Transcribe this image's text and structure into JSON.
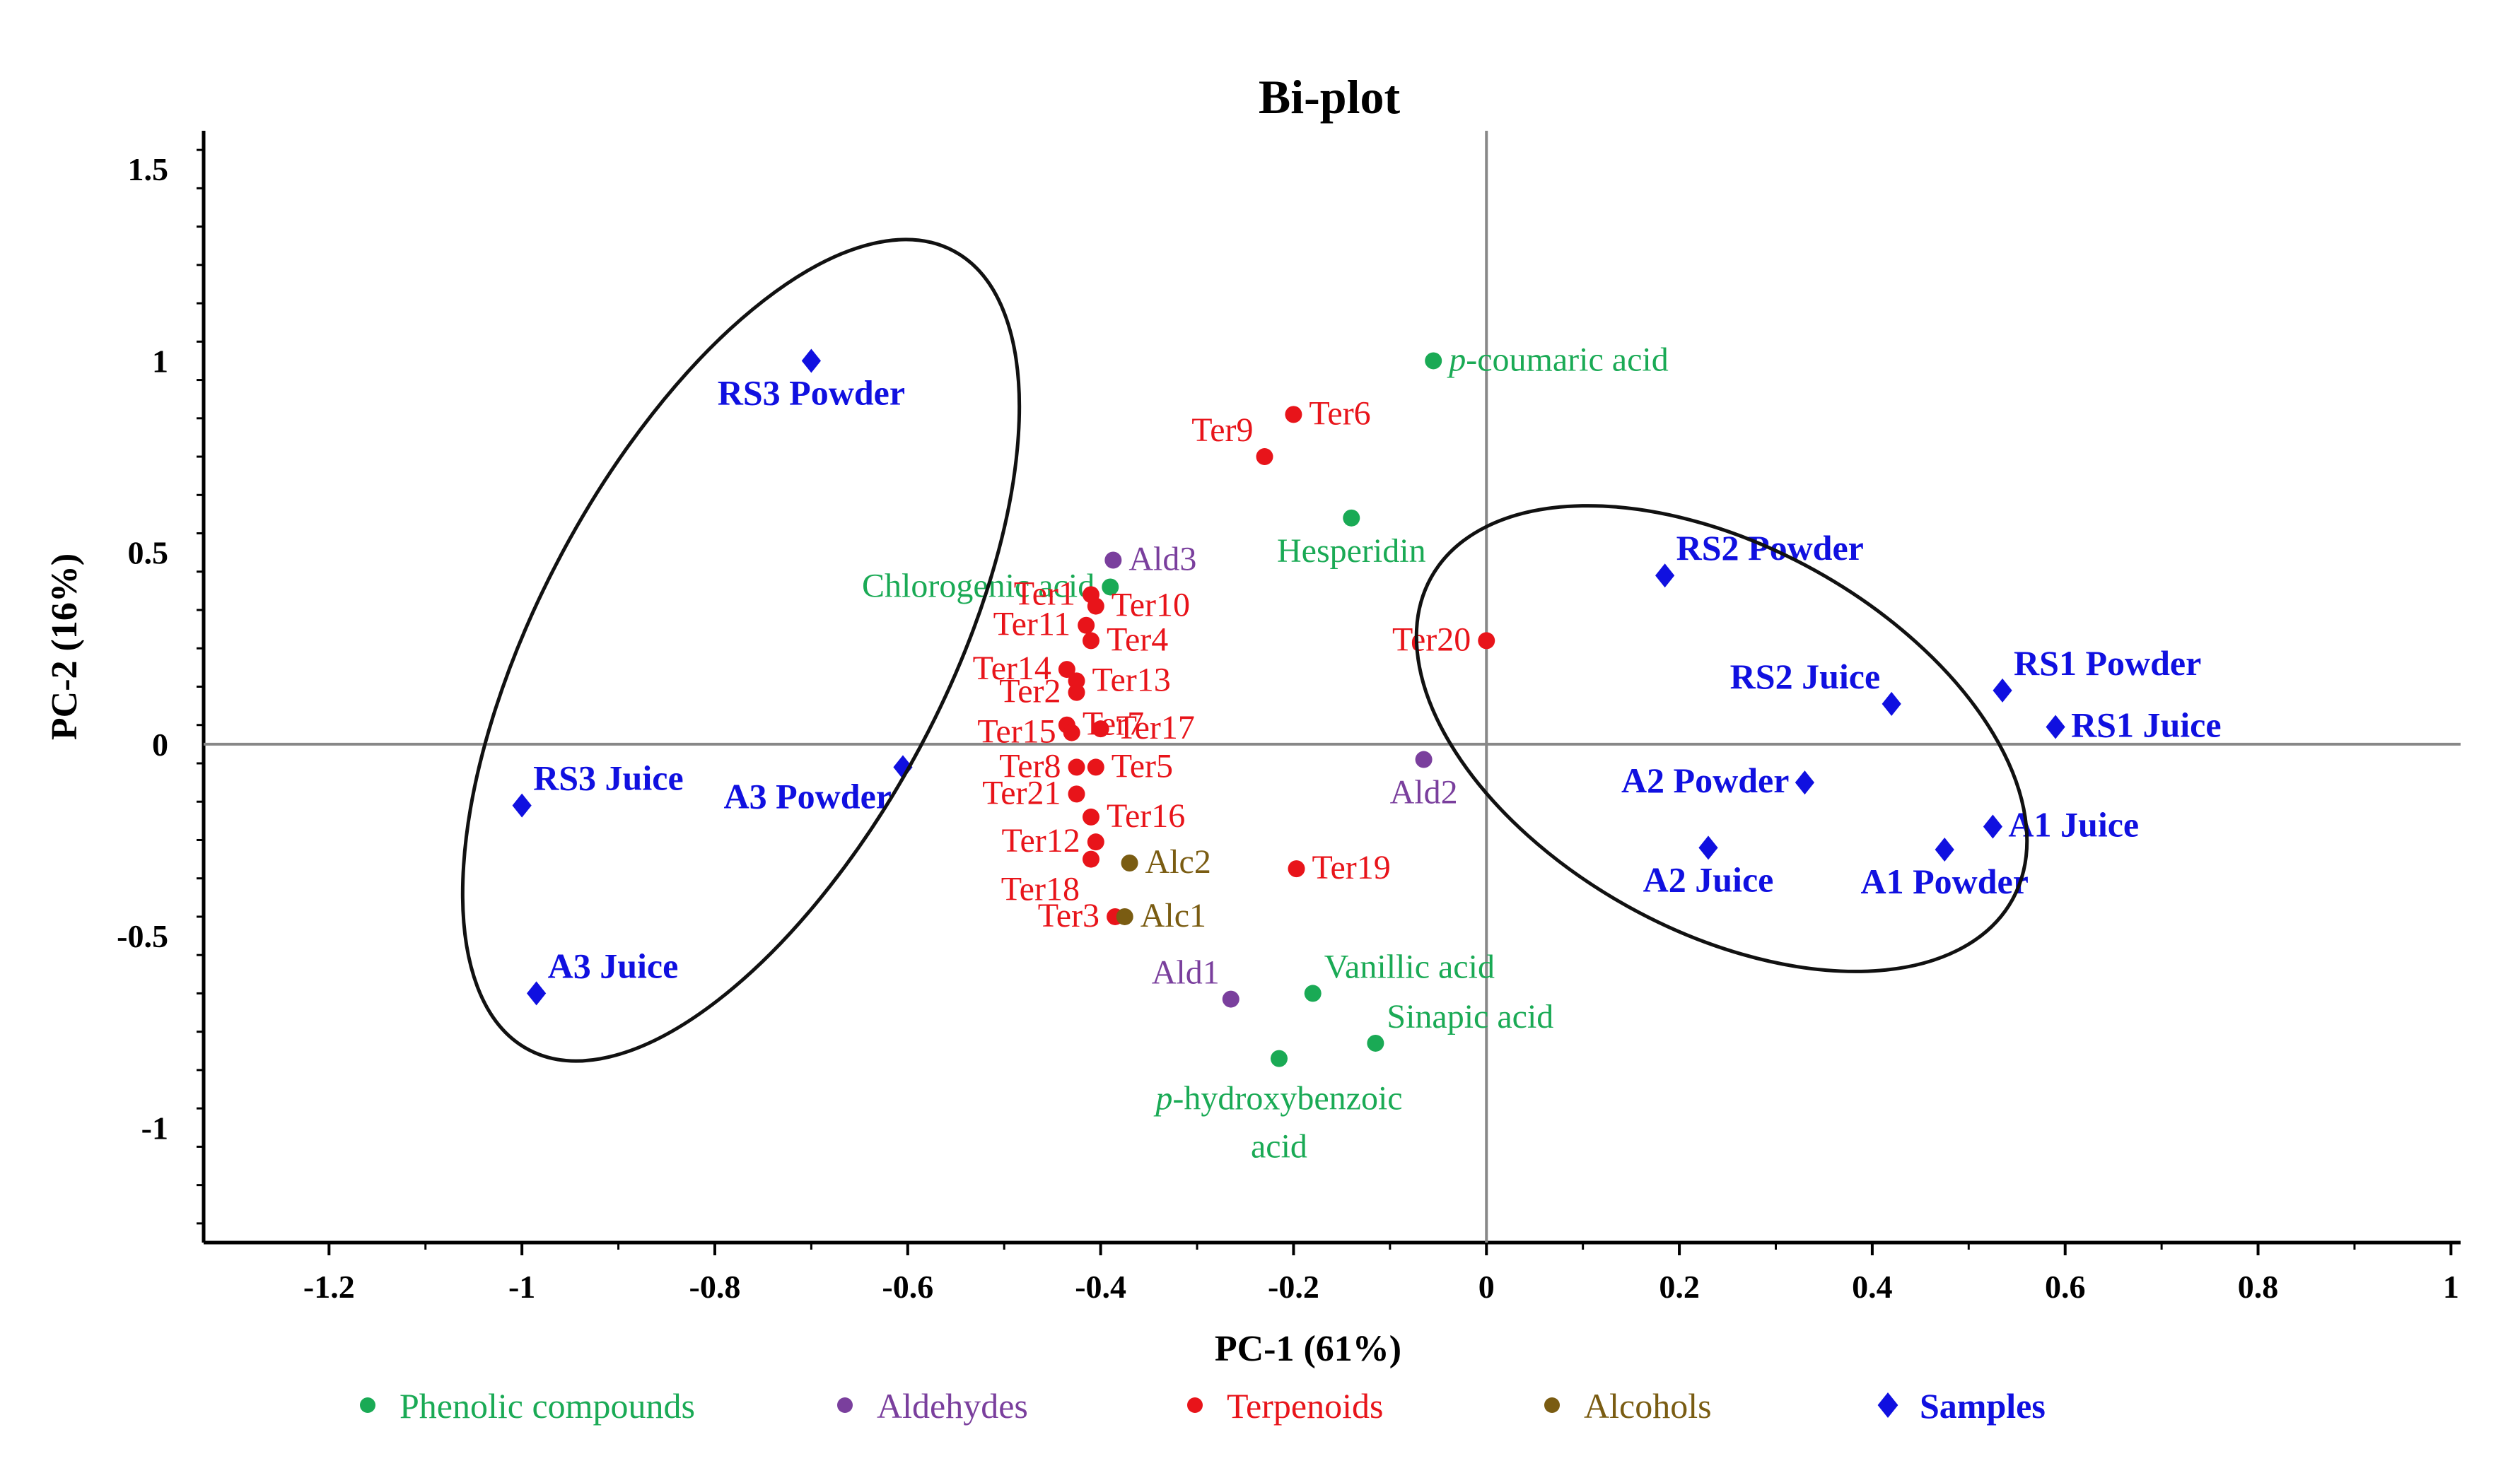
{
  "chart_data": {
    "type": "scatter",
    "title": "Bi-plot",
    "xlabel": "PC-1 (61%)",
    "ylabel": "PC-2 (16%)",
    "xlim": [
      -1.33,
      1.01
    ],
    "ylim": [
      -1.3,
      1.6
    ],
    "x_ticks": [
      -1.2,
      -1,
      -0.8,
      -0.6,
      -0.4,
      -0.2,
      0,
      0.2,
      0.4,
      0.6,
      0.8,
      1
    ],
    "y_ticks": [
      1.5,
      1,
      0.5,
      0,
      -0.5,
      -1
    ],
    "x_tick_labels": [
      "-1.2",
      "-1",
      "-0.8",
      "-0.6",
      "-0.4",
      "-0.2",
      "0",
      "0.2",
      "0.4",
      "0.6",
      "0.8",
      "1"
    ],
    "y_tick_labels": [
      "1.5",
      "1",
      "0.5",
      "0",
      "-0.5",
      "-1"
    ],
    "colors": {
      "phenolic": "#1aaa55",
      "aldehyde": "#7a3f9d",
      "terpenoid": "#e8141a",
      "alcohol": "#7a5c12",
      "sample": "#1010e0"
    },
    "legend": [
      {
        "label": "Phenolic compounds",
        "group": "phenolic",
        "marker": "circle"
      },
      {
        "label": "Aldehydes",
        "group": "aldehyde",
        "marker": "circle"
      },
      {
        "label": "Terpenoids",
        "group": "terpenoid",
        "marker": "circle"
      },
      {
        "label": "Alcohols",
        "group": "alcohol",
        "marker": "circle"
      },
      {
        "label": "Samples",
        "group": "sample",
        "marker": "diamond"
      }
    ],
    "series": [
      {
        "name": "Phenolic compounds",
        "group": "phenolic",
        "points": [
          {
            "label": "p-coumaric acid",
            "x": -0.055,
            "y": 1.0,
            "pos": "right"
          },
          {
            "label": "Hesperidin",
            "x": -0.14,
            "y": 0.59,
            "pos": "below"
          },
          {
            "label": "Chlorogenic acid",
            "x": -0.39,
            "y": 0.41,
            "pos": "left"
          },
          {
            "label": "Vanillic acid",
            "x": -0.18,
            "y": -0.65,
            "pos": "above-right"
          },
          {
            "label": "Sinapic acid",
            "x": -0.115,
            "y": -0.78,
            "pos": "above-right"
          },
          {
            "label": "p-hydroxybenzoic acid",
            "x": -0.215,
            "y": -0.82,
            "pos": "below"
          }
        ]
      },
      {
        "name": "Aldehydes",
        "group": "aldehyde",
        "points": [
          {
            "label": "Ald3",
            "x": -0.387,
            "y": 0.48,
            "pos": "right"
          },
          {
            "label": "Ald2",
            "x": -0.065,
            "y": -0.04,
            "pos": "below"
          },
          {
            "label": "Ald1",
            "x": -0.265,
            "y": -0.665,
            "pos": "above-left"
          }
        ]
      },
      {
        "name": "Terpenoids",
        "group": "terpenoid",
        "points": [
          {
            "label": "Ter6",
            "x": -0.2,
            "y": 0.86,
            "pos": "right"
          },
          {
            "label": "Ter9",
            "x": -0.23,
            "y": 0.75,
            "pos": "above-left"
          },
          {
            "label": "Ter20",
            "x": 0.0,
            "y": 0.27,
            "pos": "left"
          },
          {
            "label": "Ter1",
            "x": -0.41,
            "y": 0.39,
            "pos": "left"
          },
          {
            "label": "Ter10",
            "x": -0.405,
            "y": 0.36,
            "pos": "right"
          },
          {
            "label": "Ter11",
            "x": -0.415,
            "y": 0.31,
            "pos": "left"
          },
          {
            "label": "Ter4",
            "x": -0.41,
            "y": 0.27,
            "pos": "right"
          },
          {
            "label": "Ter14",
            "x": -0.435,
            "y": 0.195,
            "pos": "left"
          },
          {
            "label": "Ter13",
            "x": -0.425,
            "y": 0.165,
            "pos": "right"
          },
          {
            "label": "Ter2",
            "x": -0.425,
            "y": 0.135,
            "pos": "left"
          },
          {
            "label": "Ter7",
            "x": -0.435,
            "y": 0.05,
            "pos": "right"
          },
          {
            "label": "Ter17",
            "x": -0.4,
            "y": 0.04,
            "pos": "right"
          },
          {
            "label": "Ter15",
            "x": -0.43,
            "y": 0.03,
            "pos": "left"
          },
          {
            "label": "Ter8",
            "x": -0.425,
            "y": -0.06,
            "pos": "left"
          },
          {
            "label": "Ter5",
            "x": -0.405,
            "y": -0.06,
            "pos": "right"
          },
          {
            "label": "Ter21",
            "x": -0.425,
            "y": -0.13,
            "pos": "left"
          },
          {
            "label": "Ter16",
            "x": -0.41,
            "y": -0.19,
            "pos": "right"
          },
          {
            "label": "Ter12",
            "x": -0.405,
            "y": -0.255,
            "pos": "left"
          },
          {
            "label": "Ter18",
            "x": -0.41,
            "y": -0.3,
            "pos": "below-left"
          },
          {
            "label": "Ter19",
            "x": -0.197,
            "y": -0.325,
            "pos": "right"
          },
          {
            "label": "Ter3",
            "x": -0.385,
            "y": -0.45,
            "pos": "left"
          }
        ]
      },
      {
        "name": "Alcohols",
        "group": "alcohol",
        "points": [
          {
            "label": "Alc2",
            "x": -0.37,
            "y": -0.31,
            "pos": "right"
          },
          {
            "label": "Alc1",
            "x": -0.375,
            "y": -0.45,
            "pos": "right"
          }
        ]
      },
      {
        "name": "Samples",
        "group": "sample",
        "points": [
          {
            "label": "RS3 Powder",
            "x": -0.7,
            "y": 1.0,
            "pos": "below"
          },
          {
            "label": "RS3 Juice",
            "x": -1.0,
            "y": -0.16,
            "pos": "above-right"
          },
          {
            "label": "A3 Powder",
            "x": -0.605,
            "y": -0.06,
            "pos": "below-left"
          },
          {
            "label": "A3 Juice",
            "x": -0.985,
            "y": -0.65,
            "pos": "above-right"
          },
          {
            "label": "RS2 Powder",
            "x": 0.185,
            "y": 0.44,
            "pos": "above-right"
          },
          {
            "label": "RS2 Juice",
            "x": 0.42,
            "y": 0.105,
            "pos": "above-left"
          },
          {
            "label": "RS1 Powder",
            "x": 0.535,
            "y": 0.14,
            "pos": "above-right"
          },
          {
            "label": "RS1 Juice",
            "x": 0.59,
            "y": 0.045,
            "pos": "right"
          },
          {
            "label": "A2 Powder",
            "x": 0.33,
            "y": -0.1,
            "pos": "left"
          },
          {
            "label": "A2 Juice",
            "x": 0.23,
            "y": -0.27,
            "pos": "below"
          },
          {
            "label": "A1 Juice",
            "x": 0.525,
            "y": -0.215,
            "pos": "right"
          },
          {
            "label": "A1 Powder",
            "x": 0.475,
            "y": -0.275,
            "pos": "below"
          }
        ]
      }
    ]
  }
}
